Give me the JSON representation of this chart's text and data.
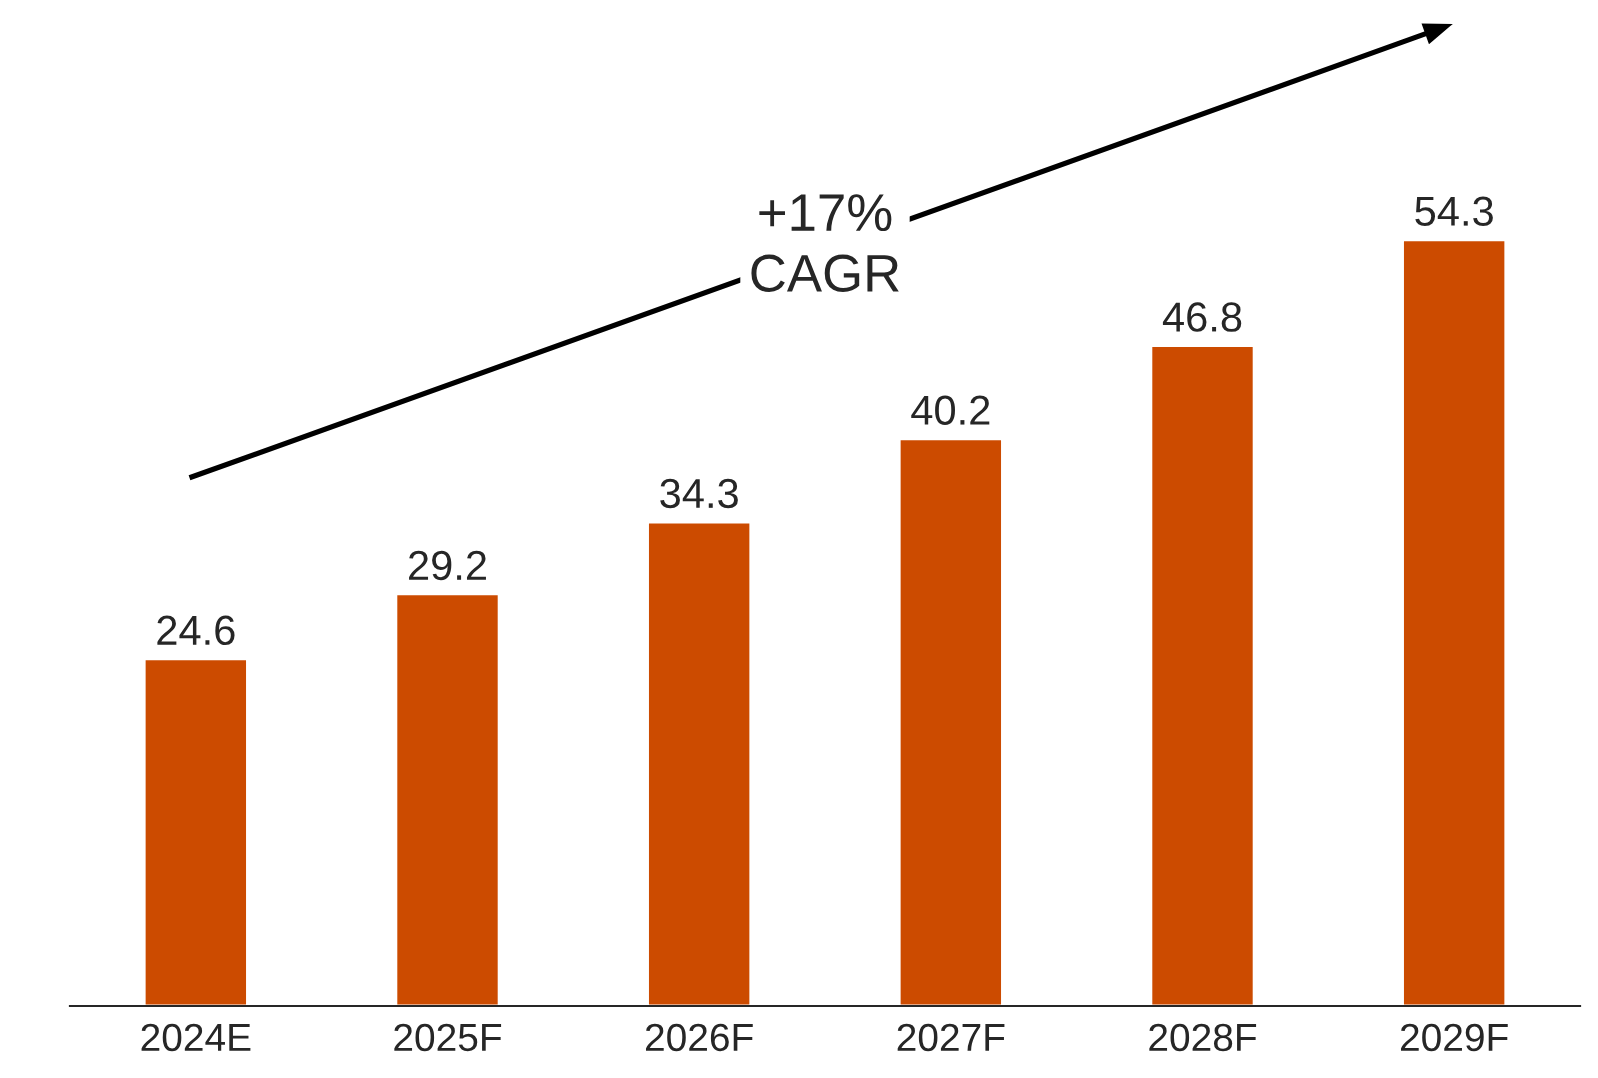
{
  "chart_data": {
    "type": "bar",
    "categories": [
      "2024E",
      "2025F",
      "2026F",
      "2027F",
      "2028F",
      "2029F"
    ],
    "values": [
      24.6,
      29.2,
      34.3,
      40.2,
      46.8,
      54.3
    ],
    "color": "#cc4b00",
    "data_labels": true,
    "annotations": [
      "+17%\nCAGR"
    ]
  }
}
